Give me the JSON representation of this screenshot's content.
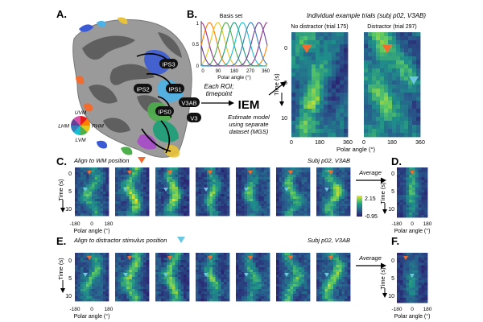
{
  "panelA": {
    "letter": "A.",
    "roi_labels": [
      "IPS3",
      "IPS2",
      "IPS1",
      "IPS0",
      "V3AB",
      "V3"
    ],
    "wheel_labels": {
      "uvm": "UVM",
      "lvm": "LVM",
      "lhm": "LHM",
      "rhm": "RHM"
    }
  },
  "panelB": {
    "letter": "B.",
    "basis_title": "Basis set",
    "basis_yticks": [
      "0",
      "0.5",
      "1"
    ],
    "basis_xticks": [
      "0",
      "90",
      "180",
      "270",
      "360"
    ],
    "basis_xlabel": "Polar angle (°)",
    "basis_colors": [
      "#e41a1c",
      "#ff7f00",
      "#e7c51a",
      "#4daf4a",
      "#1b9e77",
      "#17becf",
      "#377eb8",
      "#6a3d9a",
      "#984ea3"
    ],
    "each_roi": "Each ROI;",
    "timepoint": "timepoint",
    "iem": "IEM",
    "estimate_lines": [
      "Estimate model",
      "using separate",
      "dataset (MGS)"
    ],
    "example_title": "Individual example trials (subj p02, V3AB)",
    "no_distractor": "No distractor (trial 175)",
    "distractor": "Distractor (trial 297)",
    "time_ylabel": "Time (s)",
    "time_ticks": [
      "0",
      "5",
      "10"
    ],
    "xticks": [
      "0",
      "180",
      "360"
    ],
    "xlabel": "Polar angle (°)"
  },
  "panelC": {
    "letter": "C.",
    "align_label": "Align to WM position",
    "subj": "Subj p02, V3AB",
    "average_label": "Average",
    "colorbar_max": "2.15",
    "colorbar_min": "-0.95",
    "time_ylabel": "Time (s)",
    "time_ticks": [
      "0",
      "5",
      "10"
    ],
    "xticks": [
      "-180",
      "0",
      "180"
    ],
    "xlabel": "Polar angle (°)"
  },
  "panelD": {
    "letter": "D.",
    "time_ylabel": "Time (s)",
    "time_ticks": [
      "0",
      "5",
      "10"
    ],
    "xticks": [
      "-180",
      "0",
      "180"
    ],
    "xlabel": "Polar angle (°)"
  },
  "panelE": {
    "letter": "E.",
    "align_label": "Align to distractor stimulus position",
    "subj": "Subj p02, V3AB",
    "average_label": "Average",
    "time_ylabel": "Time (s)",
    "time_ticks": [
      "0",
      "5",
      "10"
    ],
    "xticks": [
      "-180",
      "0",
      "180"
    ],
    "xlabel": "Polar angle (°)"
  },
  "panelF": {
    "letter": "F.",
    "time_ylabel": "Time (s)",
    "time_ticks": [
      "0",
      "5",
      "10"
    ],
    "xticks": [
      "-180",
      "0",
      "180"
    ],
    "xlabel": "Polar angle (°)"
  },
  "colors": {
    "wm_marker": "#f26b2f",
    "distractor_marker": "#6cc8e0",
    "heat_low": "#2b1d6e",
    "heat_mid": "#1f8f8a",
    "heat_high": "#f4e51f"
  }
}
